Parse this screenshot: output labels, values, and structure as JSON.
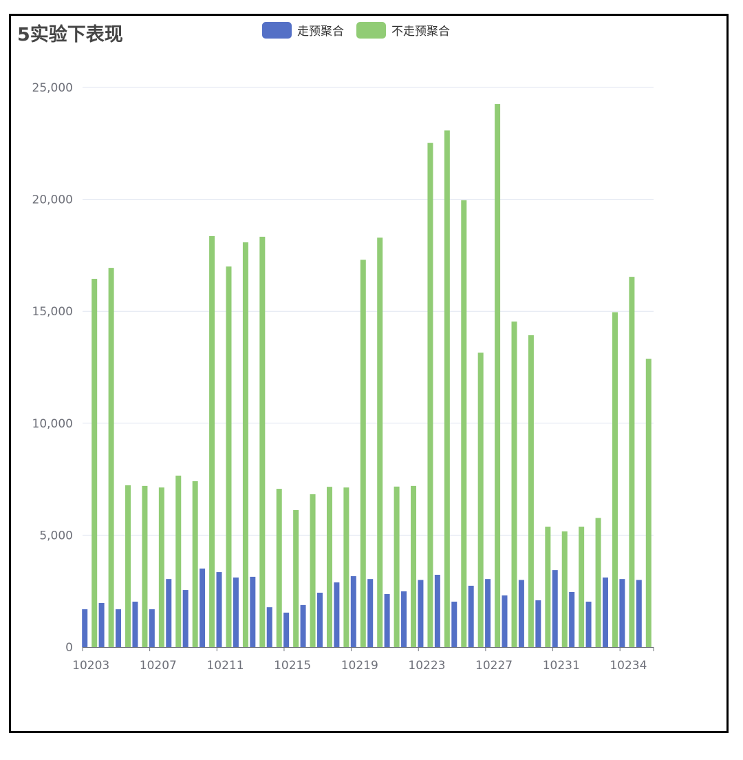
{
  "chart_data": {
    "type": "bar",
    "title": "5实验下表现",
    "xlabel": "",
    "ylabel": "",
    "ylim": [
      0,
      25000
    ],
    "yticks": [
      "0",
      "5,000",
      "10,000",
      "15,000",
      "20,000",
      "25,000"
    ],
    "ytick_values": [
      0,
      5000,
      10000,
      15000,
      20000,
      25000
    ],
    "grid": true,
    "legend_position": "top-center",
    "x_label_interval": 4,
    "categories": [
      "10203",
      "10204",
      "10205",
      "10206",
      "10207",
      "10208",
      "10209",
      "10210",
      "10211",
      "10212",
      "10213",
      "10214",
      "10215",
      "10216",
      "10217",
      "10218",
      "10219",
      "10220",
      "10221",
      "10222",
      "10223",
      "10224",
      "10225",
      "10226",
      "10227",
      "10228",
      "10229",
      "10230",
      "10231",
      "10232",
      "10233",
      "10233",
      "10234",
      "10235"
    ],
    "series": [
      {
        "name": "走预聚合",
        "color": "#5470c6",
        "values": [
          1690,
          1970,
          1690,
          2030,
          1690,
          3040,
          2550,
          3510,
          3350,
          3110,
          3140,
          1780,
          1540,
          1880,
          2430,
          2890,
          3170,
          3040,
          2370,
          2490,
          3000,
          3230,
          2030,
          2740,
          3040,
          2310,
          3000,
          2090,
          3440,
          2460,
          2030,
          3110,
          3040,
          3000
        ]
      },
      {
        "name": "不走预聚合",
        "color": "#91cc75",
        "values": [
          16450,
          16940,
          7230,
          7200,
          7130,
          7660,
          7410,
          18360,
          17000,
          18080,
          18330,
          7070,
          6120,
          6830,
          7160,
          7130,
          17300,
          18290,
          7170,
          7200,
          22520,
          23080,
          19960,
          13150,
          24260,
          14540,
          13930,
          5380,
          5170,
          5380,
          5770,
          14960,
          16540,
          12880
        ]
      }
    ]
  }
}
